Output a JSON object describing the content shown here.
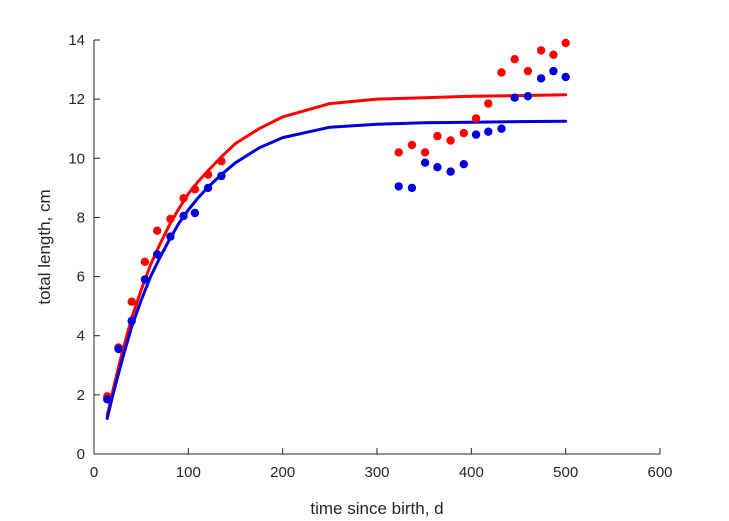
{
  "chart_data": {
    "type": "scatter",
    "title": "",
    "xlabel": "time since birth, d",
    "ylabel": "total length, cm",
    "xlim": [
      0,
      600
    ],
    "ylim": [
      0,
      14
    ],
    "xticks": [
      0,
      100,
      200,
      300,
      400,
      500,
      600
    ],
    "yticks": [
      0,
      2,
      4,
      6,
      8,
      10,
      12,
      14
    ],
    "grid": false,
    "legend": "none",
    "series": [
      {
        "kind": "points",
        "color": "#ff0000",
        "x": [
          14,
          26,
          40,
          54,
          67,
          81,
          95,
          107,
          121,
          135,
          323,
          337,
          351,
          364,
          378,
          392,
          405,
          418,
          432,
          446,
          460,
          474,
          487,
          500
        ],
        "y": [
          1.95,
          3.6,
          5.15,
          6.5,
          7.55,
          7.95,
          8.65,
          8.95,
          9.45,
          9.9,
          10.2,
          10.45,
          10.2,
          10.75,
          10.6,
          10.85,
          11.35,
          11.85,
          12.9,
          13.35,
          12.95,
          13.65,
          13.5,
          13.9
        ]
      },
      {
        "kind": "points",
        "color": "#0000dd",
        "x": [
          14,
          26,
          40,
          54,
          67,
          81,
          95,
          107,
          121,
          135,
          323,
          337,
          351,
          364,
          378,
          392,
          405,
          418,
          432,
          446,
          460,
          474,
          487,
          500
        ],
        "y": [
          1.85,
          3.55,
          4.5,
          5.9,
          6.75,
          7.35,
          8.05,
          8.15,
          9.0,
          9.4,
          9.05,
          9.0,
          9.85,
          9.7,
          9.55,
          9.8,
          10.8,
          10.9,
          11.0,
          12.05,
          12.1,
          12.7,
          12.95,
          12.75
        ]
      },
      {
        "kind": "line",
        "color": "#ff0000",
        "x": [
          14,
          20,
          30,
          40,
          50,
          60,
          70,
          80,
          90,
          100,
          110,
          120,
          135,
          150,
          175,
          200,
          250,
          300,
          350,
          400,
          450,
          500
        ],
        "y": [
          1.3,
          2.15,
          3.45,
          4.6,
          5.55,
          6.4,
          7.1,
          7.75,
          8.3,
          8.8,
          9.2,
          9.55,
          10.05,
          10.5,
          11.0,
          11.4,
          11.85,
          12.0,
          12.05,
          12.1,
          12.12,
          12.15
        ]
      },
      {
        "kind": "line",
        "color": "#0000dd",
        "x": [
          14,
          20,
          30,
          40,
          50,
          60,
          70,
          80,
          90,
          100,
          110,
          120,
          135,
          150,
          175,
          200,
          250,
          300,
          350,
          400,
          450,
          500
        ],
        "y": [
          1.2,
          2.0,
          3.2,
          4.3,
          5.2,
          6.0,
          6.65,
          7.25,
          7.8,
          8.25,
          8.65,
          9.0,
          9.45,
          9.85,
          10.35,
          10.7,
          11.05,
          11.15,
          11.2,
          11.22,
          11.24,
          11.25
        ]
      }
    ]
  }
}
